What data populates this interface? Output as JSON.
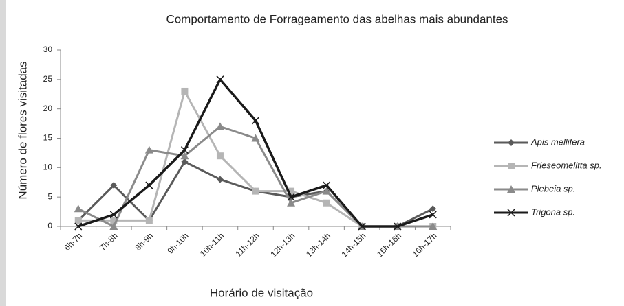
{
  "chart_data": {
    "type": "line",
    "title": "Comportamento de Forrageamento das abelhas mais abundantes",
    "x_label": "Horário de visitação",
    "y_label": "Número de flores visitadas",
    "categories": [
      "6h-7h",
      "7h-8h",
      "8h-9h",
      "9h-10h",
      "10h-11h",
      "11h-12h",
      "12h-13h",
      "13h-14h",
      "14h-15h",
      "15h-16h",
      "16h-17h"
    ],
    "series": [
      {
        "name": "Apis mellifera",
        "color": "#5a5a5a",
        "marker": "diamond",
        "values": [
          1,
          7,
          1,
          11,
          8,
          6,
          5,
          6,
          0,
          0,
          3
        ]
      },
      {
        "name": "Frieseomelitta sp.",
        "color": "#b5b5b5",
        "marker": "square",
        "values": [
          1,
          1,
          1,
          23,
          12,
          6,
          6,
          4,
          0,
          0,
          0
        ]
      },
      {
        "name": "Plebeia sp.",
        "color": "#8a8a8a",
        "marker": "triangle",
        "values": [
          3,
          0,
          13,
          12,
          17,
          15,
          4,
          6,
          0,
          0,
          0
        ]
      },
      {
        "name": "Trigona sp.",
        "color": "#1a1a1a",
        "marker": "x",
        "values": [
          0,
          2,
          7,
          13,
          25,
          18,
          5,
          7,
          0,
          0,
          2
        ]
      }
    ],
    "ylim": [
      0,
      30
    ],
    "yticks": [
      0,
      5,
      10,
      15,
      20,
      25,
      30
    ],
    "grid": false,
    "legend": "right"
  }
}
